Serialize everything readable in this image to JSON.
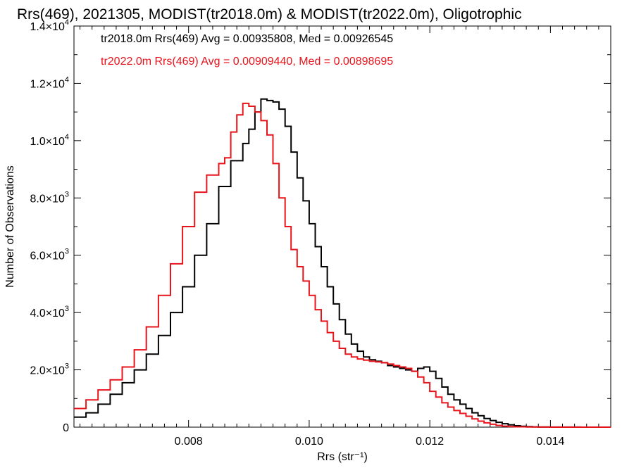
{
  "chart_data": {
    "type": "line",
    "step": true,
    "title": "Rrs(469), 2021305, MODIST(tr2018.0m) & MODIST(tr2022.0m), Oligotrophic",
    "xlabel": "Rrs (str⁻¹)",
    "ylabel": "Number of Observations",
    "xlim": [
      0.0061,
      0.015
    ],
    "ylim": [
      0,
      14000
    ],
    "x_ticks": [
      {
        "value": 0.008,
        "label": "0.008"
      },
      {
        "value": 0.01,
        "label": "0.010"
      },
      {
        "value": 0.012,
        "label": "0.012"
      },
      {
        "value": 0.014,
        "label": "0.014"
      }
    ],
    "y_ticks": [
      {
        "value": 0,
        "mantissa": "0",
        "exponent": ""
      },
      {
        "value": 2000,
        "mantissa": "2.0×10",
        "exponent": "3"
      },
      {
        "value": 4000,
        "mantissa": "4.0×10",
        "exponent": "3"
      },
      {
        "value": 6000,
        "mantissa": "6.0×10",
        "exponent": "3"
      },
      {
        "value": 8000,
        "mantissa": "8.0×10",
        "exponent": "3"
      },
      {
        "value": 10000,
        "mantissa": "1.0×10",
        "exponent": "4"
      },
      {
        "value": 12000,
        "mantissa": "1.2×10",
        "exponent": "4"
      },
      {
        "value": 14000,
        "mantissa": "1.4×10",
        "exponent": "4"
      }
    ],
    "annotations": [
      {
        "text": "tr2018.0m Rrs(469) Avg = 0.00935808, Med = 0.00926545",
        "color": "#000000"
      },
      {
        "text": "tr2022.0m Rrs(469) Avg = 0.00909440, Med = 0.00898695",
        "color": "#e8141b"
      }
    ],
    "series": [
      {
        "color": "#000000",
        "x": [
          0.0061,
          0.0063,
          0.0065,
          0.0067,
          0.0069,
          0.0071,
          0.0073,
          0.0075,
          0.0077,
          0.0079,
          0.0081,
          0.0083,
          0.0085,
          0.0087,
          0.0089,
          0.009,
          0.0091,
          0.0092,
          0.0093,
          0.0094,
          0.0095,
          0.0096,
          0.0097,
          0.0098,
          0.0099,
          0.01,
          0.0101,
          0.0102,
          0.0103,
          0.0104,
          0.0105,
          0.0106,
          0.0107,
          0.0108,
          0.0109,
          0.011,
          0.0111,
          0.0112,
          0.0113,
          0.0114,
          0.0115,
          0.0116,
          0.0117,
          0.0118,
          0.0119,
          0.012,
          0.0121,
          0.0122,
          0.0123,
          0.0124,
          0.0125,
          0.0126,
          0.0127,
          0.0128,
          0.0129,
          0.013,
          0.0131,
          0.0132,
          0.0133,
          0.0134,
          0.0135,
          0.0136,
          0.0137,
          0.0138,
          0.014,
          0.0142,
          0.0145,
          0.015
        ],
        "y": [
          350,
          500,
          800,
          1150,
          1550,
          2000,
          2550,
          3200,
          4000,
          4900,
          6000,
          7100,
          8400,
          9300,
          9900,
          10400,
          11000,
          11450,
          11400,
          11350,
          11100,
          10500,
          9600,
          8700,
          7900,
          7100,
          6300,
          5600,
          4900,
          4300,
          3750,
          3250,
          2900,
          2650,
          2450,
          2350,
          2300,
          2250,
          2150,
          2100,
          2050,
          2000,
          1950,
          2050,
          2100,
          1950,
          1700,
          1400,
          1150,
          950,
          800,
          650,
          500,
          400,
          300,
          230,
          170,
          120,
          80,
          50,
          30,
          20,
          10,
          6,
          3,
          2,
          1,
          0
        ]
      },
      {
        "color": "#e8141b",
        "x": [
          0.0061,
          0.0063,
          0.0065,
          0.0067,
          0.0069,
          0.0071,
          0.0073,
          0.0075,
          0.0077,
          0.0079,
          0.0081,
          0.0083,
          0.0085,
          0.0086,
          0.0087,
          0.0088,
          0.0089,
          0.009,
          0.0091,
          0.0092,
          0.0093,
          0.0094,
          0.0095,
          0.0096,
          0.0097,
          0.0098,
          0.0099,
          0.01,
          0.0101,
          0.0102,
          0.0103,
          0.0104,
          0.0105,
          0.0106,
          0.0107,
          0.0108,
          0.0109,
          0.011,
          0.0111,
          0.0112,
          0.0113,
          0.0114,
          0.0115,
          0.0116,
          0.0117,
          0.0118,
          0.0119,
          0.012,
          0.0121,
          0.0122,
          0.0123,
          0.0124,
          0.0125,
          0.0126,
          0.0127,
          0.0128,
          0.0129,
          0.013,
          0.0131,
          0.0132,
          0.0133,
          0.0134,
          0.0136,
          0.0138,
          0.014,
          0.0145,
          0.015
        ],
        "y": [
          650,
          950,
          1300,
          1650,
          2100,
          2700,
          3500,
          4600,
          5700,
          7000,
          8200,
          8800,
          9200,
          9400,
          10300,
          10900,
          11300,
          11200,
          11000,
          10700,
          10200,
          9200,
          8000,
          7000,
          6200,
          5600,
          5100,
          4600,
          4100,
          3700,
          3300,
          3000,
          2750,
          2550,
          2450,
          2380,
          2340,
          2300,
          2280,
          2250,
          2200,
          2150,
          2100,
          2050,
          1950,
          1750,
          1550,
          1250,
          1050,
          850,
          700,
          580,
          480,
          380,
          290,
          210,
          150,
          100,
          60,
          35,
          20,
          12,
          6,
          3,
          1,
          0,
          0
        ]
      }
    ]
  }
}
